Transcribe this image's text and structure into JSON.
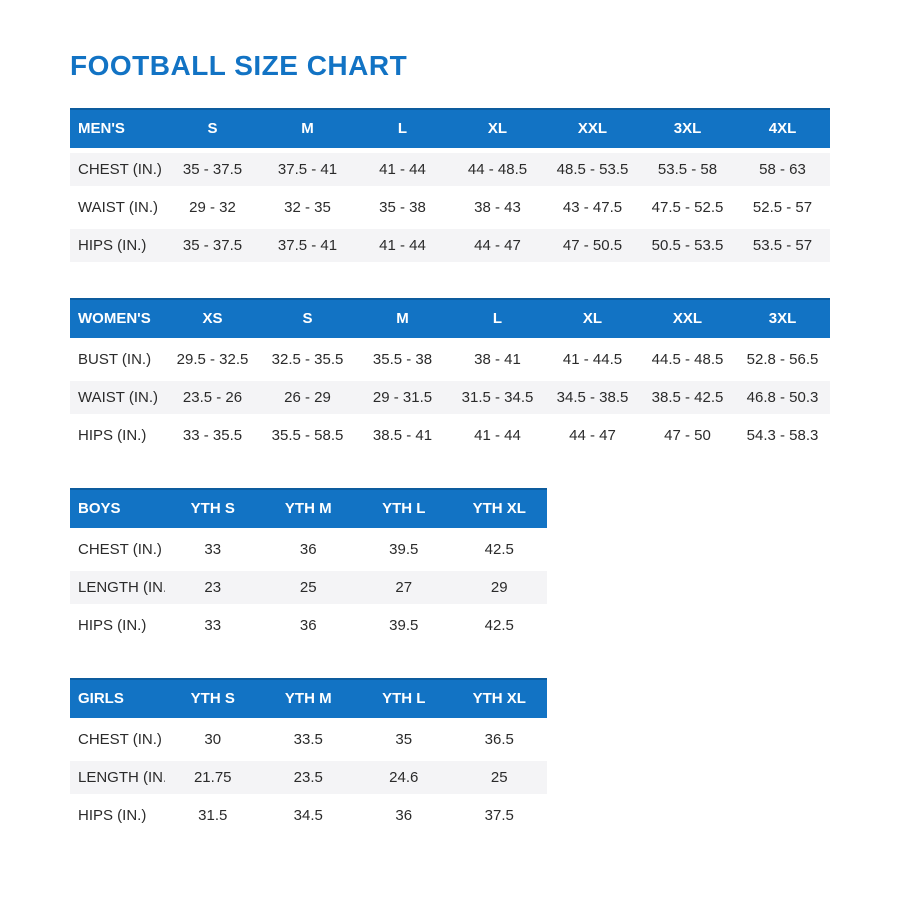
{
  "page_title": "FOOTBALL SIZE CHART",
  "colors": {
    "accent_blue": "#1273C4",
    "header_top_border": "#0D5C9E",
    "header_text": "#FFFFFF",
    "stripe_gray": "#F4F4F6",
    "body_text": "#2B2B2B"
  },
  "chart_data": [
    {
      "type": "table",
      "title": "MEN'S",
      "columns": [
        "S",
        "M",
        "L",
        "XL",
        "XXL",
        "3XL",
        "4XL"
      ],
      "rows": [
        {
          "label": "CHEST (IN.)",
          "values": [
            "35 - 37.5",
            "37.5 - 41",
            "41 - 44",
            "44 - 48.5",
            "48.5 - 53.5",
            "53.5 - 58",
            "58 - 63"
          ]
        },
        {
          "label": "WAIST (IN.)",
          "values": [
            "29 - 32",
            "32 - 35",
            "35 - 38",
            "38 - 43",
            "43 - 47.5",
            "47.5 - 52.5",
            "52.5 - 57"
          ]
        },
        {
          "label": "HIPS (IN.)",
          "values": [
            "35 - 37.5",
            "37.5 - 41",
            "41 - 44",
            "44 - 47",
            "47 - 50.5",
            "50.5 - 53.5",
            "53.5 - 57"
          ]
        }
      ],
      "shaded_rows": [
        0,
        2
      ]
    },
    {
      "type": "table",
      "title": "WOMEN'S",
      "columns": [
        "XS",
        "S",
        "M",
        "L",
        "XL",
        "XXL",
        "3XL"
      ],
      "rows": [
        {
          "label": "BUST (IN.)",
          "values": [
            "29.5 - 32.5",
            "32.5 - 35.5",
            "35.5 - 38",
            "38 - 41",
            "41 - 44.5",
            "44.5 - 48.5",
            "52.8 - 56.5"
          ]
        },
        {
          "label": "WAIST (IN.)",
          "values": [
            "23.5 - 26",
            "26 - 29",
            "29 - 31.5",
            "31.5 - 34.5",
            "34.5 - 38.5",
            "38.5 - 42.5",
            "46.8 - 50.3"
          ]
        },
        {
          "label": "HIPS (IN.)",
          "values": [
            "33 - 35.5",
            "35.5 - 58.5",
            "38.5 - 41",
            "41 - 44",
            "44 - 47",
            "47 - 50",
            "54.3 - 58.3"
          ]
        }
      ],
      "shaded_rows": [
        1
      ]
    },
    {
      "type": "table",
      "title": "BOYS",
      "columns": [
        "YTH S",
        "YTH M",
        "YTH L",
        "YTH XL"
      ],
      "rows": [
        {
          "label": "CHEST (IN.)",
          "values": [
            "33",
            "36",
            "39.5",
            "42.5"
          ]
        },
        {
          "label": "LENGTH (IN.)",
          "values": [
            "23",
            "25",
            "27",
            "29"
          ]
        },
        {
          "label": "HIPS (IN.)",
          "values": [
            "33",
            "36",
            "39.5",
            "42.5"
          ]
        }
      ],
      "shaded_rows": [
        1
      ]
    },
    {
      "type": "table",
      "title": "GIRLS",
      "columns": [
        "YTH S",
        "YTH M",
        "YTH L",
        "YTH XL"
      ],
      "rows": [
        {
          "label": "CHEST (IN.)",
          "values": [
            "30",
            "33.5",
            "35",
            "36.5"
          ]
        },
        {
          "label": "LENGTH (IN.)",
          "values": [
            "21.75",
            "23.5",
            "24.6",
            "25"
          ]
        },
        {
          "label": "HIPS (IN.)",
          "values": [
            "31.5",
            "34.5",
            "36",
            "37.5"
          ]
        }
      ],
      "shaded_rows": [
        1
      ]
    }
  ]
}
